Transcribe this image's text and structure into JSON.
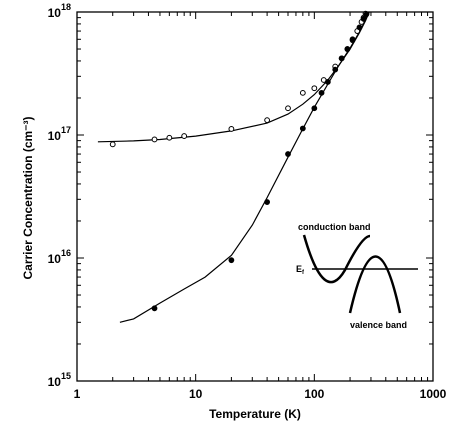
{
  "chart_data": {
    "type": "scatter",
    "title": "",
    "xlabel": "Temperature (K)",
    "ylabel": "Carrier Concentration (cm⁻³)",
    "xscale": "log",
    "yscale": "log",
    "xlim": [
      1,
      1000
    ],
    "ylim": [
      1000000000000000.0,
      1e+18
    ],
    "grid": false,
    "legend": "none",
    "x_ticks": [
      {
        "value": 1,
        "label": "1"
      },
      {
        "value": 10,
        "label": "10"
      },
      {
        "value": 100,
        "label": "100"
      },
      {
        "value": 1000,
        "label": "1000"
      }
    ],
    "y_ticks": [
      {
        "value": 1000000000000000.0,
        "base": "10",
        "exp": "15"
      },
      {
        "value": 1e+16,
        "base": "10",
        "exp": "16"
      },
      {
        "value": 1e+17,
        "base": "10",
        "exp": "17"
      },
      {
        "value": 1e+18,
        "base": "10",
        "exp": "18"
      }
    ],
    "series": [
      {
        "marker": "open-circle",
        "points": [
          [
            2.0,
            8.4e+16
          ],
          [
            4.5,
            9.2e+16
          ],
          [
            6.0,
            9.5e+16
          ],
          [
            8.0,
            9.8e+16
          ],
          [
            20,
            1.12e+17
          ],
          [
            40,
            1.32e+17
          ],
          [
            60,
            1.65e+17
          ],
          [
            80,
            2.2e+17
          ],
          [
            100,
            2.4e+17
          ],
          [
            120,
            2.8e+17
          ],
          [
            150,
            3.6e+17
          ],
          [
            170,
            4.2e+17
          ],
          [
            190,
            5e+17
          ],
          [
            210,
            5.9e+17
          ],
          [
            230,
            7e+17
          ],
          [
            250,
            8.3e+17
          ],
          [
            260,
            9e+17
          ],
          [
            270,
            9.7e+17
          ]
        ]
      },
      {
        "marker": "filled-circle",
        "points": [
          [
            4.5,
            3900000000000000.0
          ],
          [
            20,
            9600000000000000.0
          ],
          [
            40,
            2.85e+16
          ],
          [
            60,
            7e+16
          ],
          [
            80,
            1.13e+17
          ],
          [
            100,
            1.65e+17
          ],
          [
            115,
            2.2e+17
          ],
          [
            130,
            2.7e+17
          ],
          [
            150,
            3.4e+17
          ],
          [
            170,
            4.2e+17
          ],
          [
            190,
            5e+17
          ],
          [
            210,
            6e+17
          ],
          [
            240,
            7.5e+17
          ],
          [
            260,
            8.8e+17
          ],
          [
            275,
            9.6e+17
          ]
        ]
      }
    ],
    "fit_curves": [
      {
        "points": [
          [
            1.5,
            8.8e+16
          ],
          [
            3,
            8.95e+16
          ],
          [
            5,
            9.2e+16
          ],
          [
            10,
            9.8e+16
          ],
          [
            20,
            1.08e+17
          ],
          [
            40,
            1.25e+17
          ],
          [
            60,
            1.48e+17
          ],
          [
            80,
            1.78e+17
          ],
          [
            100,
            2.13e+17
          ],
          [
            130,
            2.8e+17
          ],
          [
            160,
            3.65e+17
          ],
          [
            200,
            5e+17
          ],
          [
            240,
            6.8e+17
          ],
          [
            270,
            8.5e+17
          ],
          [
            290,
            1e+18
          ]
        ]
      },
      {
        "points": [
          [
            2.3,
            3000000000000000.0
          ],
          [
            3,
            3200000000000000.0
          ],
          [
            5,
            4300000000000000.0
          ],
          [
            8,
            5600000000000000.0
          ],
          [
            12,
            7000000000000000.0
          ],
          [
            20,
            1.05e+16
          ],
          [
            30,
            1.85e+16
          ],
          [
            40,
            3.1e+16
          ],
          [
            60,
            6.6e+16
          ],
          [
            80,
            1.12e+17
          ],
          [
            100,
            1.68e+17
          ],
          [
            130,
            2.6e+17
          ],
          [
            160,
            3.65e+17
          ],
          [
            200,
            5.1e+17
          ],
          [
            240,
            6.9e+17
          ],
          [
            270,
            8.6e+17
          ],
          [
            290,
            1e+18
          ]
        ]
      }
    ],
    "inset": {
      "labels": {
        "conduction": "conduction band",
        "fermi": "E",
        "fermi_sub": "f",
        "valence": "valence band"
      }
    }
  }
}
